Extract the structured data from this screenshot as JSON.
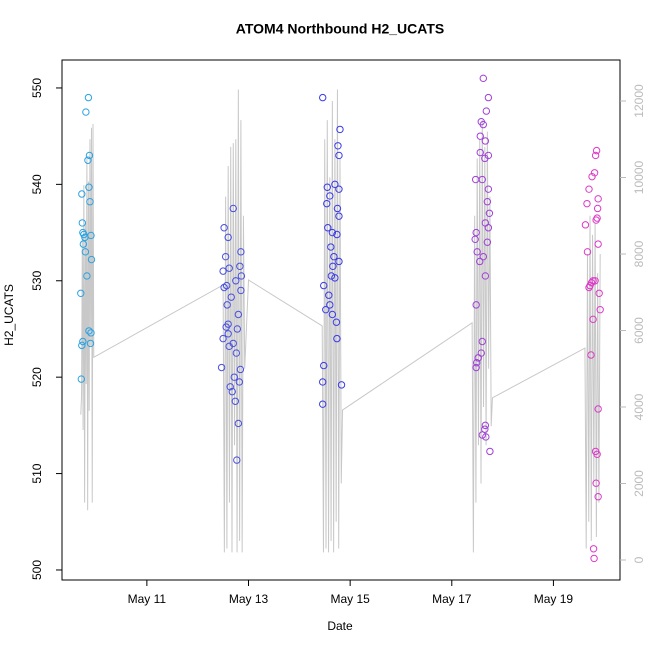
{
  "chart_data": {
    "type": "scatter",
    "title": "ATOM4 Northbound H2_UCATS",
    "x_label": "Date",
    "y_label": "H2_UCATS",
    "xlim": [
      9.33,
      20.31
    ],
    "xticks": [
      {
        "value": 11,
        "label": "May 11"
      },
      {
        "value": 13,
        "label": "May 13"
      },
      {
        "value": 15,
        "label": "May 15"
      },
      {
        "value": 17,
        "label": "May 17"
      },
      {
        "value": 19,
        "label": "May 19"
      }
    ],
    "ylim": [
      498.96,
      552.9
    ],
    "yticks": [
      500,
      510,
      520,
      530,
      540,
      550
    ],
    "y2lim": [
      -523,
      13072
    ],
    "y2ticks": [
      0,
      2000,
      4000,
      6000,
      8000,
      10000,
      12000
    ],
    "y2_color": "#bbbbbb",
    "series": [
      {
        "type": "line",
        "axis": "y2",
        "color": "#c8c8c8",
        "x": [
          9.7,
          9.715,
          9.73,
          9.745,
          9.76,
          9.775,
          9.79,
          9.805,
          9.82,
          9.835,
          9.85,
          9.865,
          9.88,
          9.895,
          9.91,
          9.925,
          9.94,
          9.955,
          12.5,
          12.525,
          12.55,
          12.575,
          12.6,
          12.625,
          12.65,
          12.675,
          12.7,
          12.725,
          12.75,
          12.775,
          12.8,
          12.825,
          12.85,
          12.875,
          12.9,
          12.925,
          13.0,
          14.45,
          14.475,
          14.5,
          14.525,
          14.55,
          14.575,
          14.6,
          14.625,
          14.65,
          14.675,
          14.7,
          14.725,
          14.75,
          14.775,
          14.8,
          14.825,
          14.85,
          17.4,
          17.425,
          17.45,
          17.475,
          17.5,
          17.525,
          17.55,
          17.575,
          17.6,
          17.625,
          17.65,
          17.675,
          17.7,
          17.725,
          17.75,
          17.775,
          17.8,
          19.62,
          19.645,
          19.67,
          19.695,
          19.72,
          19.745,
          19.77,
          19.795,
          19.82,
          19.845,
          19.87,
          19.895,
          19.92
        ],
        "values": [
          3800,
          4300,
          8500,
          3400,
          9800,
          1500,
          8800,
          4600,
          10500,
          1300,
          9900,
          3900,
          11000,
          5600,
          11300,
          1500,
          11400,
          5300,
          7190,
          200,
          9500,
          300,
          10300,
          1500,
          10800,
          200,
          10900,
          3000,
          11000,
          200,
          12300,
          500,
          11500,
          200,
          9000,
          5000,
          7320,
          6120,
          200,
          11000,
          300,
          11500,
          200,
          10000,
          500,
          12000,
          200,
          11000,
          1000,
          12300,
          300,
          10500,
          2000,
          3920,
          6200,
          200,
          9000,
          1500,
          10500,
          3000,
          11000,
          2000,
          11500,
          4000,
          10800,
          3000,
          11200,
          5000,
          9500,
          3500,
          4240,
          5540,
          300,
          8000,
          1000,
          9000,
          500,
          8500,
          2000,
          8800,
          600,
          7500,
          1500,
          8000
        ]
      },
      {
        "type": "scatter",
        "color": "#2aa3e3",
        "x": [
          9.85,
          9.8,
          9.87,
          9.84,
          9.86,
          9.72,
          9.88,
          9.73,
          9.74,
          9.76,
          9.9,
          9.78,
          9.75,
          9.79,
          9.91,
          9.82,
          9.7,
          9.86,
          9.9,
          9.74,
          9.89,
          9.72,
          9.71
        ],
        "values": [
          549,
          547.5,
          543,
          542.5,
          539.7,
          539,
          538.2,
          536,
          535,
          534.8,
          534.7,
          534.5,
          533.8,
          533,
          532.2,
          530.5,
          528.7,
          524.8,
          524.6,
          523.7,
          523.5,
          523.3,
          519.8
        ]
      },
      {
        "type": "scatter",
        "color": "#4a50e0",
        "x": [
          12.7,
          12.52,
          12.6,
          12.85,
          12.55,
          12.83,
          12.62,
          12.5,
          12.86,
          12.75,
          12.57,
          12.52,
          12.85,
          12.66,
          12.58,
          12.8,
          12.6,
          12.56,
          12.78,
          12.6,
          12.5,
          12.7,
          12.62,
          12.76,
          12.47,
          12.84,
          12.72,
          12.82,
          12.64,
          12.68,
          12.74,
          12.8,
          12.77
        ],
        "values": [
          537.5,
          535.5,
          534.5,
          533,
          532.5,
          531.5,
          531.3,
          531,
          530.5,
          530,
          529.5,
          529.3,
          529,
          528.3,
          527.5,
          526.5,
          525.5,
          525.2,
          525,
          524.5,
          524,
          523.5,
          523.2,
          522.5,
          521,
          520.8,
          520,
          519.5,
          519,
          518.5,
          517.5,
          515.2,
          511.4
        ]
      },
      {
        "type": "scatter",
        "color": "#3b3be8",
        "x": [
          14.46,
          14.8,
          14.76,
          14.78,
          14.7,
          14.55,
          14.78,
          14.6,
          14.54,
          14.75,
          14.78,
          14.56,
          14.65,
          14.74,
          14.62,
          14.68,
          14.78,
          14.66,
          14.63,
          14.7,
          14.48,
          14.58,
          14.6,
          14.52,
          14.65,
          14.73,
          14.74,
          14.48,
          14.46,
          14.83,
          14.46
        ],
        "values": [
          549,
          545.7,
          544,
          543,
          540,
          539.7,
          539.5,
          538.8,
          538,
          537.5,
          536.7,
          535.5,
          535,
          534.8,
          533.5,
          532.5,
          532,
          531.5,
          530.5,
          530.3,
          529.5,
          528.5,
          527.5,
          527,
          526.5,
          525.7,
          524,
          521.2,
          519.5,
          519.2,
          517.2
        ]
      },
      {
        "type": "scatter",
        "color": "#a040d8",
        "x": [
          17.62,
          17.72,
          17.68,
          17.58,
          17.62,
          17.56,
          17.66,
          17.56,
          17.72,
          17.65,
          17.47,
          17.6,
          17.72,
          17.7,
          17.74,
          17.66,
          17.72,
          17.48,
          17.46,
          17.7,
          17.5,
          17.62,
          17.55,
          17.66,
          17.48,
          17.6,
          17.58,
          17.52,
          17.49,
          17.48,
          17.66,
          17.65,
          17.6,
          17.67,
          17.75
        ],
        "values": [
          551,
          549,
          547.6,
          546.5,
          546.2,
          545,
          544.5,
          543.3,
          543,
          542.7,
          540.5,
          540.5,
          539.5,
          538.2,
          537,
          536,
          535.5,
          535,
          534.3,
          534,
          533,
          532.5,
          532,
          530.5,
          527.5,
          523.7,
          522.5,
          522,
          521.5,
          521,
          515,
          514.6,
          514,
          513.8,
          512.3
        ]
      },
      {
        "type": "scatter",
        "color": "#dd3ac8",
        "x": [
          19.85,
          19.83,
          19.81,
          19.76,
          19.7,
          19.88,
          19.66,
          19.87,
          19.86,
          19.84,
          19.63,
          19.88,
          19.67,
          19.78,
          19.82,
          19.75,
          19.72,
          19.7,
          19.9,
          19.92,
          19.78,
          19.74,
          19.88,
          19.83,
          19.86,
          19.84,
          19.88,
          19.79,
          19.8
        ],
        "values": [
          543.5,
          543,
          541.2,
          540.8,
          539.5,
          538.5,
          538,
          537.5,
          536.5,
          536.3,
          535.8,
          533.8,
          533,
          530,
          530,
          529.8,
          529.5,
          529.3,
          528.7,
          527,
          526,
          522.3,
          516.7,
          512.3,
          512,
          509,
          507.6,
          502.2,
          501.2
        ]
      }
    ]
  }
}
